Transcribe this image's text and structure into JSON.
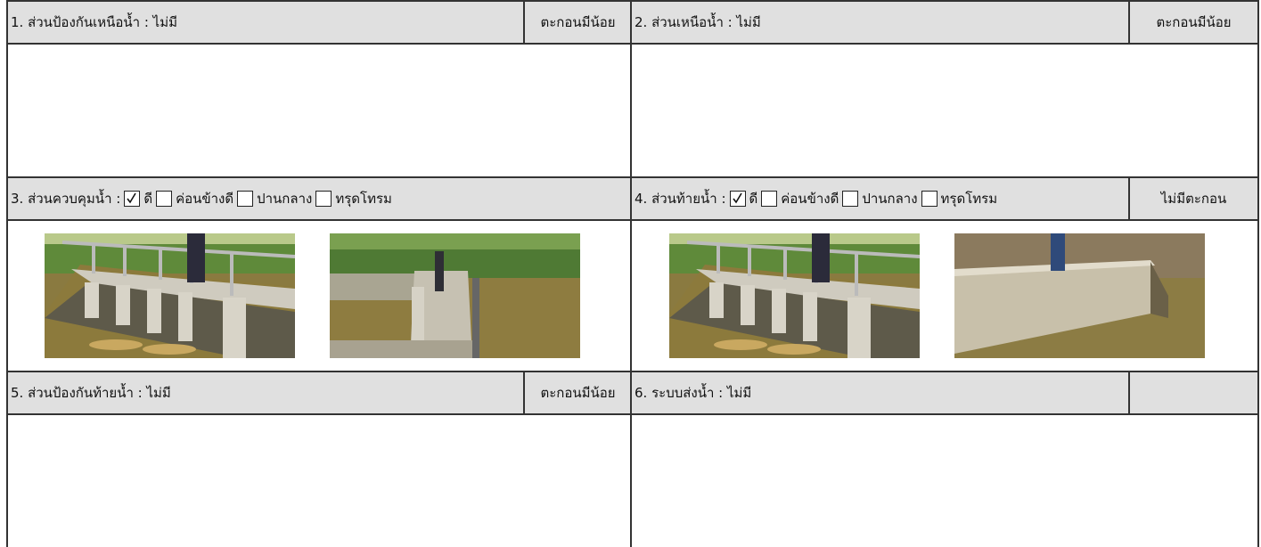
{
  "sections": [
    {
      "title": "1. ส่วนป้องกันเหนือน้ำ : ไม่มี",
      "status": "ตะกอนมีน้อย"
    },
    {
      "title": "2. ส่วนเหนือน้ำ : ไม่มี",
      "status": "ตะกอนมีน้อย"
    },
    {
      "title": "3. ส่วนควบคุมน้ำ :",
      "options": [
        {
          "label": "ดี",
          "checked": true
        },
        {
          "label": "ค่อนข้างดี",
          "checked": false
        },
        {
          "label": "ปานกลาง",
          "checked": false
        },
        {
          "label": "ทรุดโทรม",
          "checked": false
        }
      ]
    },
    {
      "title": "4. ส่วนท้ายน้ำ :",
      "options": [
        {
          "label": "ดี",
          "checked": true
        },
        {
          "label": "ค่อนข้างดี",
          "checked": false
        },
        {
          "label": "ปานกลาง",
          "checked": false
        },
        {
          "label": "ทรุดโทรม",
          "checked": false
        }
      ],
      "status": "ไม่มีตะกอน"
    },
    {
      "title": "5. ส่วนป้องกันท้ายน้ำ : ไม่มี",
      "status": "ตะกอนมีน้อย"
    },
    {
      "title": "6. ระบบส่งน้ำ : ไม่มี"
    }
  ]
}
